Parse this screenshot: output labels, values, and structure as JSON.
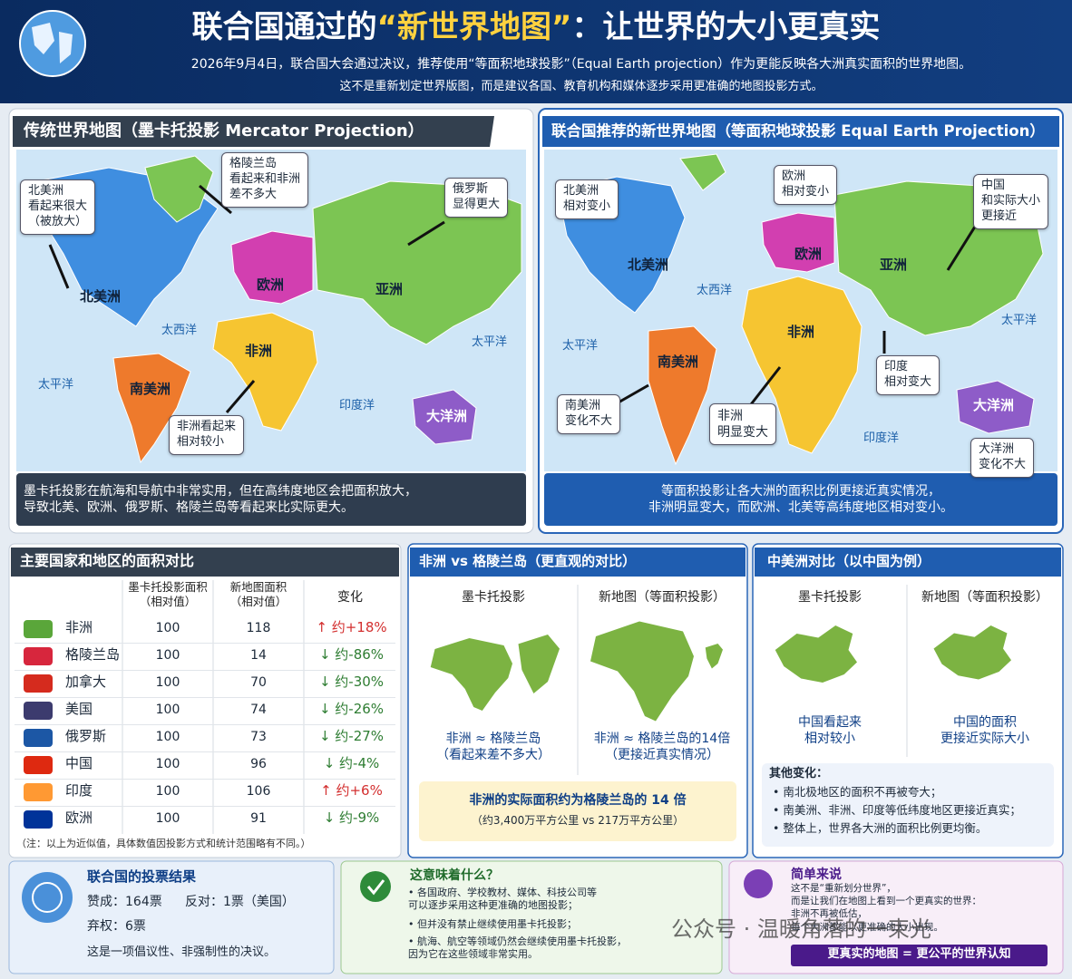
{
  "header": {
    "title_pre": "联合国通过的",
    "title_highlight": "“新世界地图”",
    "title_post": "：让世界的大小更真实",
    "subtitle": [
      "2026年9月4日，联合国大会通过决议，推荐使用“等面积地球投影”（Equal Earth projection）作为更能反映各大洲真实面积的世界地图。",
      "这不是重新划定世界版图，而是建议各国、教育机构和媒体逐步采用更准确的地图投影方式。"
    ]
  },
  "mercator_map": {
    "title": "传统世界地图（墨卡托投影 Mercator Projection）",
    "callouts": [
      "北美洲\n看起来很大\n（被放大）",
      "格陵兰岛\n看起来和非洲\n差不多大",
      "俄罗斯\n显得更大",
      "非洲看起来\n相对较小"
    ],
    "regions": [
      "北美洲",
      "欧洲",
      "亚洲",
      "非洲",
      "南美洲",
      "大洋洲"
    ],
    "oceans": [
      "太西洋",
      "太平洋",
      "太平洋",
      "印度洋"
    ],
    "caption": "墨卡托投影在航海和导航中非常实用，但在高纬度地区会把面积放大，\n导致北美、欧洲、俄罗斯、格陵兰岛等看起来比实际更大。"
  },
  "equal_earth_map": {
    "title": "联合国推荐的新世界地图（等面积地球投影 Equal Earth Projection）",
    "callouts": [
      "北美洲\n相对变小",
      "欧洲\n相对变小",
      "中国\n和实际大小\n更接近",
      "南美洲\n变化不大",
      "非洲\n明显变大",
      "印度\n相对变大",
      "大洋洲\n变化不大"
    ],
    "regions": [
      "北美洲",
      "欧洲",
      "亚洲",
      "非洲",
      "南美洲",
      "大洋洲"
    ],
    "oceans": [
      "太西洋",
      "太平洋",
      "太平洋",
      "印度洋"
    ],
    "caption": "等面积投影让各大洲的面积比例更接近真实情况，\n非洲明显变大，而欧洲、北美等高纬度地区相对变小。"
  },
  "area_table": {
    "title": "主要国家和地区的面积对比",
    "columns": [
      "墨卡托投影面积\n（相对值）",
      "新地图面积\n（相对值）",
      "变化"
    ],
    "rows": [
      {
        "name": "非洲",
        "mercator": 100,
        "new": 118,
        "change": "↑ 约+18%",
        "color": "#d32f2f"
      },
      {
        "name": "格陵兰岛",
        "mercator": 100,
        "new": 14,
        "change": "↓ 约-86%",
        "color": "#2e7d32"
      },
      {
        "name": "加拿大",
        "mercator": 100,
        "new": 70,
        "change": "↓ 约-30%",
        "color": "#2e7d32"
      },
      {
        "name": "美国",
        "mercator": 100,
        "new": 74,
        "change": "↓ 约-26%",
        "color": "#2e7d32"
      },
      {
        "name": "俄罗斯",
        "mercator": 100,
        "new": 73,
        "change": "↓ 约-27%",
        "color": "#2e7d32"
      },
      {
        "name": "中国",
        "mercator": 100,
        "new": 96,
        "change": "↓ 约-4%",
        "color": "#2e7d32"
      },
      {
        "name": "印度",
        "mercator": 100,
        "new": 106,
        "change": "↑ 约+6%",
        "color": "#d32f2f"
      },
      {
        "name": "欧洲",
        "mercator": 100,
        "new": 91,
        "change": "↓ 约-9%",
        "color": "#2e7d32"
      }
    ],
    "note": "（注：以上为近似值，具体数值因投影方式和统计范围略有不同。）"
  },
  "africa_greenland": {
    "title": "非洲 vs 格陵兰岛（更直观的对比）",
    "columns": [
      "墨卡托投影",
      "新地图（等面积投影）"
    ],
    "captions": [
      "非洲 ≈ 格陵兰岛\n（看起来差不多大）",
      "非洲 ≈ 格陵兰岛的14倍\n（更接近真实情况）"
    ],
    "fact": "非洲的实际面积约为格陵兰岛的 14 倍",
    "fact_sub": "（约3,400万平方公里 vs 217万平方公里）"
  },
  "china_compare": {
    "title": "中美洲对比（以中国为例）",
    "columns": [
      "墨卡托投影",
      "新地图（等面积投影）"
    ],
    "captions": [
      "中国看起来\n相对较小",
      "中国的面积\n更接近实际大小"
    ],
    "other_title": "其他变化：",
    "bullets": [
      "南北极地区的面积不再被夸大；",
      "南美洲、非洲、印度等低纬度地区更接近真实；",
      "整体上，世界各大洲的面积比例更均衡。"
    ]
  },
  "un_vote": {
    "title": "联合国的投票结果",
    "yes": "赞成：164票",
    "no": "反对：1票（美国）",
    "abstain": "弃权：6票",
    "note": "这是一项倡议性、非强制性的决议。"
  },
  "meaning": {
    "title": "这意味着什么？",
    "bullets": [
      "各国政府、学校教材、媒体、科技公司等\n可以逐步采用这种更准确的地图投影；",
      "但并没有禁止继续使用墨卡托投影；",
      "航海、航空等领域仍然会继续使用墨卡托投影，\n因为它在这些领域非常实用。"
    ]
  },
  "simply": {
    "title": "简单来说",
    "text": "这不是“重新划分世界”，\n而是让我们在地图上看到一个更真实的世界：\n非洲不再被低估，\n每个大洲都能以更准确的大小出现。",
    "banner": "更真实的地图 = 更公平的世界认知"
  },
  "watermark": "公众号 · 温暖角落的一束光"
}
